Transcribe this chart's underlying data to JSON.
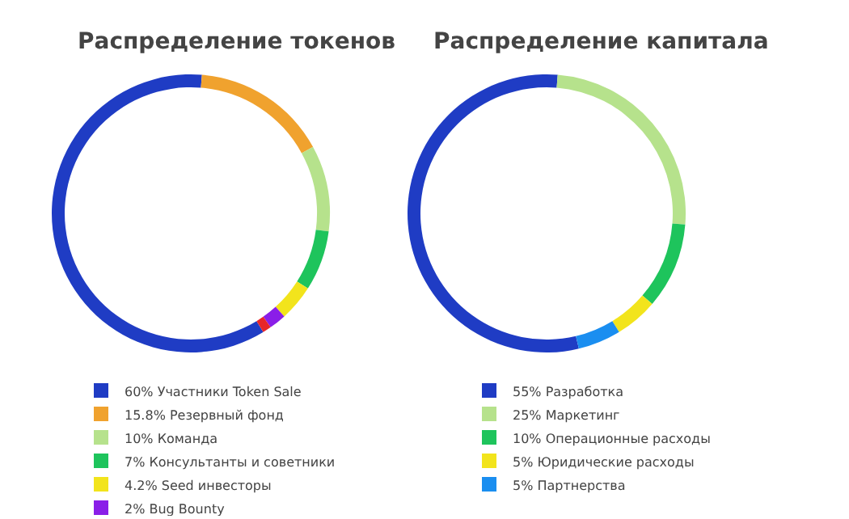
{
  "chart_data": [
    {
      "type": "donut",
      "title": "Распределение токенов",
      "categories": [
        "60% Участники Token Sale",
        "15.8% Резервный фонд",
        "10% Команда",
        "7% Консультанты и советники",
        "4.2% Seed инвесторы",
        "2% Bug Bounty",
        null
      ],
      "values": [
        60,
        15.8,
        10,
        7,
        4.2,
        2,
        1
      ],
      "colors": [
        "#1f3cc4",
        "#f0a22e",
        "#b6e28c",
        "#1ec45c",
        "#f2e41c",
        "#8a1ee8",
        "#e8262a"
      ],
      "legend": "bottom"
    },
    {
      "type": "donut",
      "title": "Распределение капитала",
      "categories": [
        "55% Разработка",
        "25% Маркетинг",
        "10% Операционные расходы",
        "5% Юридические расходы",
        "5% Партнерства"
      ],
      "values": [
        55,
        25,
        10,
        5,
        5
      ],
      "colors": [
        "#1f3cc4",
        "#b6e28c",
        "#1ec45c",
        "#f2e41c",
        "#1a8ef0"
      ],
      "legend": "bottom"
    }
  ]
}
